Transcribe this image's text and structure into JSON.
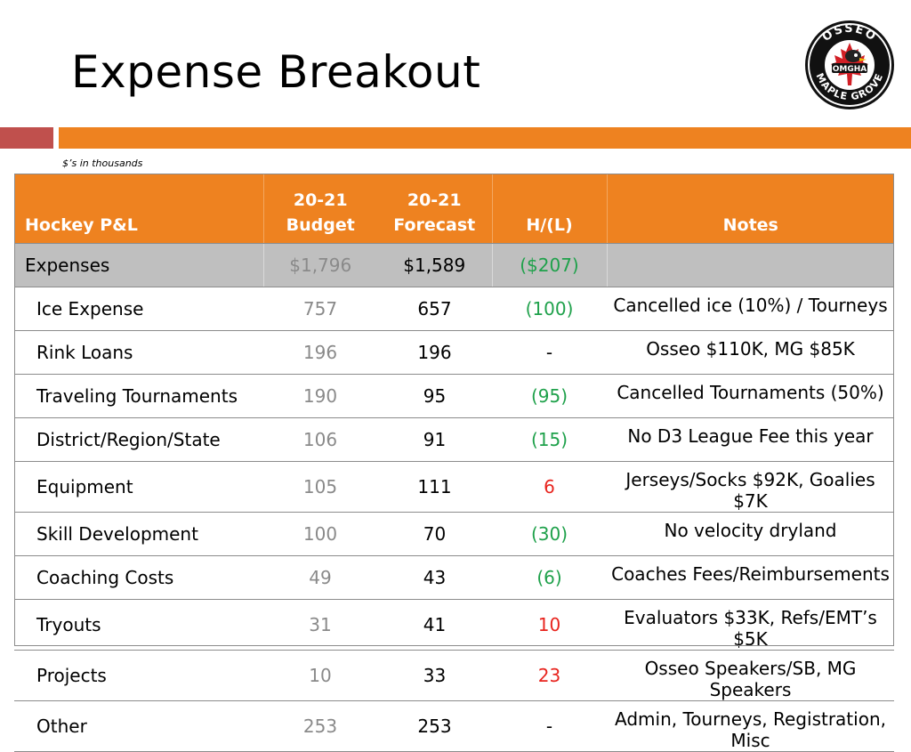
{
  "slide": {
    "title": "Expense Breakout",
    "units_note": "$’s in thousands",
    "logo": {
      "top_text": "OSSEO",
      "bottom_text": "MAPLE GROVE",
      "center_text": "OMGHA",
      "icon": "maple-leaf-hockey-bird-logo",
      "colors": {
        "ring": "#111111",
        "leaf": "#d21f26"
      }
    }
  },
  "colors": {
    "header": "#ee8220",
    "accent_red": "#c0504d",
    "positive": "#1fa14b",
    "negative": "#e8241e"
  },
  "table": {
    "headers": {
      "label": "Hockey P&L",
      "budget_line1": "20-21",
      "budget_line2": "Budget",
      "forecast_line1": "20-21",
      "forecast_line2": "Forecast",
      "hl": "H/(L)",
      "notes": "Notes"
    },
    "total": {
      "label": "Expenses",
      "budget": "$1,796",
      "forecast": "$1,589",
      "hl": "($207)",
      "note": ""
    },
    "rows": [
      {
        "label": "Ice Expense",
        "budget": "757",
        "forecast": "657",
        "hl": "(100)",
        "hl_color": "green",
        "note": "Cancelled ice (10%) / Tourneys"
      },
      {
        "label": "Rink Loans",
        "budget": "196",
        "forecast": "196",
        "hl": "-",
        "hl_color": "black",
        "note": "Osseo $110K, MG $85K"
      },
      {
        "label": "Traveling Tournaments",
        "budget": "190",
        "forecast": "95",
        "hl": "(95)",
        "hl_color": "green",
        "note": "Cancelled Tournaments (50%)"
      },
      {
        "label": "District/Region/State",
        "budget": "106",
        "forecast": "91",
        "hl": "(15)",
        "hl_color": "green",
        "note": "No D3 League Fee this year"
      },
      {
        "label": "Equipment",
        "budget": "105",
        "forecast": "111",
        "hl": "6",
        "hl_color": "red",
        "note": "Jerseys/Socks $92K, Goalies $7K"
      },
      {
        "label": "Skill Development",
        "budget": "100",
        "forecast": "70",
        "hl": "(30)",
        "hl_color": "green",
        "note": "No velocity dryland"
      },
      {
        "label": "Coaching Costs",
        "budget": "49",
        "forecast": "43",
        "hl": "(6)",
        "hl_color": "green",
        "note": "Coaches Fees/Reimbursements"
      },
      {
        "label": "Tryouts",
        "budget": "31",
        "forecast": "41",
        "hl": "10",
        "hl_color": "red",
        "note": "Evaluators $33K, Refs/EMT’s $5K"
      },
      {
        "label": "Projects",
        "budget": "10",
        "forecast": "33",
        "hl": "23",
        "hl_color": "red",
        "note": "Osseo Speakers/SB, MG Speakers"
      },
      {
        "label": "Other",
        "budget": "253",
        "forecast": "253",
        "hl": "-",
        "hl_color": "black",
        "note": "Admin, Tourneys, Registration, Misc"
      }
    ]
  }
}
